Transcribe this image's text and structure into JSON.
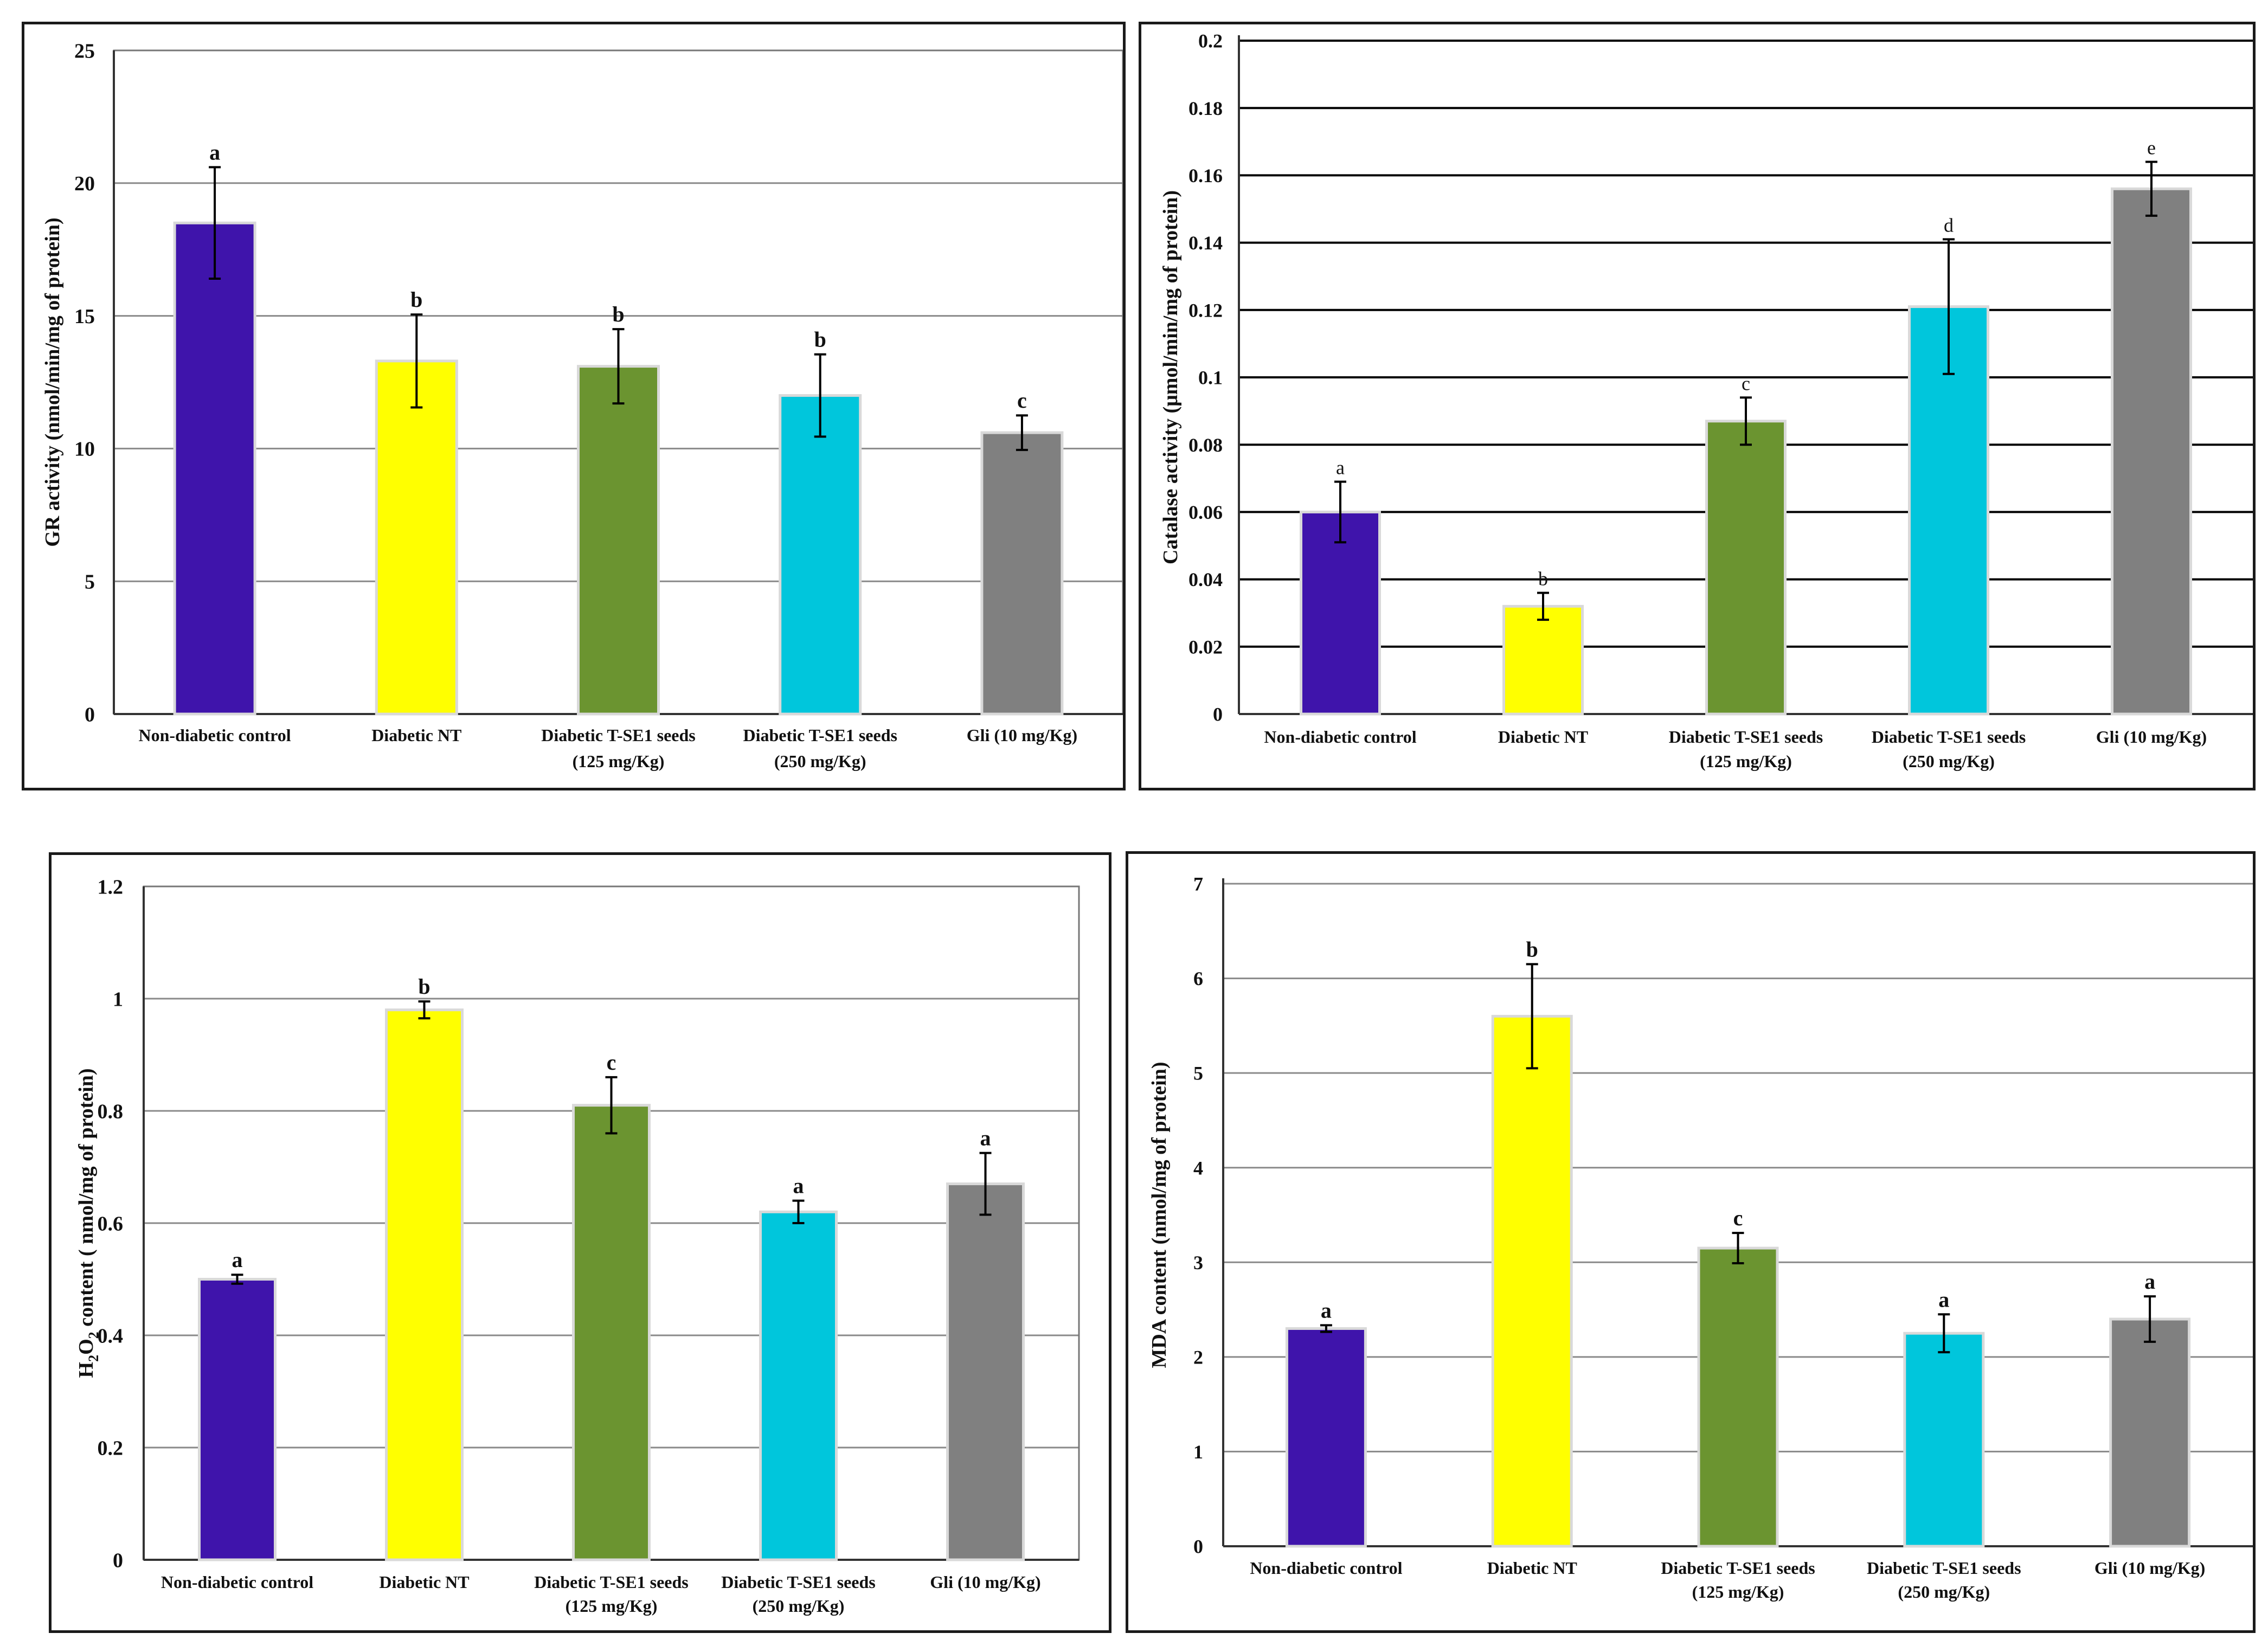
{
  "chart_data": [
    {
      "type": "bar",
      "ylabel": "GR activity (nmol/min/mg of protein)",
      "ylim": [
        0,
        25
      ],
      "yticks": [
        "0",
        "5",
        "10",
        "15",
        "20",
        "25"
      ],
      "categories": [
        [
          "Non-diabetic control"
        ],
        [
          "Diabetic NT"
        ],
        [
          "Diabetic T-SE1 seeds",
          "(125 mg/Kg)"
        ],
        [
          "Diabetic T-SE1 seeds",
          "(250 mg/Kg)"
        ],
        [
          "Gli (10 mg/Kg)"
        ]
      ],
      "values": [
        18.5,
        13.3,
        13.1,
        12.0,
        10.6
      ],
      "errors": [
        2.1,
        1.75,
        1.4,
        1.55,
        0.65
      ],
      "labels": [
        "a",
        "b",
        "b",
        "b",
        "c"
      ],
      "colors": [
        "#3f14ab",
        "#ffff00",
        "#6b9430",
        "#00c6dc",
        "#808080"
      ],
      "grid": true,
      "frame": "box",
      "label_style": "bold"
    },
    {
      "type": "bar",
      "ylabel": "Catalase activity (μmol/min/mg of protein)",
      "ylim": [
        0,
        0.2
      ],
      "yticks": [
        "0",
        "0.02",
        "0.04",
        "0.06",
        "0.08",
        "0.1",
        "0.12",
        "0.14",
        "0.16",
        "0.18",
        "0.2"
      ],
      "categories": [
        [
          "Non-diabetic control"
        ],
        [
          "Diabetic NT"
        ],
        [
          "Diabetic T-SE1 seeds",
          "(125 mg/Kg)"
        ],
        [
          "Diabetic T-SE1 seeds",
          "(250 mg/Kg)"
        ],
        [
          "Gli (10 mg/Kg)"
        ]
      ],
      "values": [
        0.06,
        0.032,
        0.087,
        0.121,
        0.156
      ],
      "errors": [
        0.009,
        0.004,
        0.007,
        0.02,
        0.008
      ],
      "labels": [
        "a",
        "b",
        "c",
        "d",
        "e"
      ],
      "colors": [
        "#3f14ab",
        "#ffff00",
        "#6b9430",
        "#00c6dc",
        "#808080"
      ],
      "grid": true,
      "frame": "left",
      "label_style": "normal"
    },
    {
      "type": "bar",
      "ylabel": "H2O2 content ( nmol/mg of protein)",
      "ylabel_parts": [
        "H",
        "2",
        "O",
        "2",
        " content ( nmol/mg of protein)"
      ],
      "ylim": [
        0,
        1.2
      ],
      "yticks": [
        "0",
        "0.2",
        "0.4",
        "0.6",
        "0.8",
        "1",
        "1.2"
      ],
      "categories": [
        [
          "Non-diabetic control"
        ],
        [
          "Diabetic NT"
        ],
        [
          "Diabetic T-SE1 seeds",
          "(125 mg/Kg)"
        ],
        [
          "Diabetic T-SE1 seeds",
          "(250 mg/Kg)"
        ],
        [
          "Gli (10 mg/Kg)"
        ]
      ],
      "values": [
        0.5,
        0.98,
        0.81,
        0.62,
        0.67
      ],
      "errors": [
        0.008,
        0.015,
        0.05,
        0.02,
        0.055
      ],
      "labels": [
        "a",
        "b",
        "c",
        "a",
        "a"
      ],
      "colors": [
        "#3f14ab",
        "#ffff00",
        "#6b9430",
        "#00c6dc",
        "#808080"
      ],
      "grid": true,
      "frame": "box",
      "label_style": "bold"
    },
    {
      "type": "bar",
      "ylabel": "MDA content (nmol/mg of protein)",
      "ylim": [
        0,
        7
      ],
      "yticks": [
        "0",
        "1",
        "2",
        "3",
        "4",
        "5",
        "6",
        "7"
      ],
      "categories": [
        [
          "Non-diabetic control"
        ],
        [
          "Diabetic NT"
        ],
        [
          "Diabetic T-SE1 seeds",
          "(125 mg/Kg)"
        ],
        [
          "Diabetic T-SE1 seeds",
          "(250 mg/Kg)"
        ],
        [
          "Gli (10 mg/Kg)"
        ]
      ],
      "values": [
        2.3,
        5.6,
        3.15,
        2.25,
        2.4
      ],
      "errors": [
        0.035,
        0.55,
        0.16,
        0.2,
        0.24
      ],
      "labels": [
        "a",
        "b",
        "c",
        "a",
        "a"
      ],
      "colors": [
        "#3f14ab",
        "#ffff00",
        "#6b9430",
        "#00c6dc",
        "#808080"
      ],
      "grid": true,
      "frame": "left",
      "label_style": "bold"
    }
  ]
}
